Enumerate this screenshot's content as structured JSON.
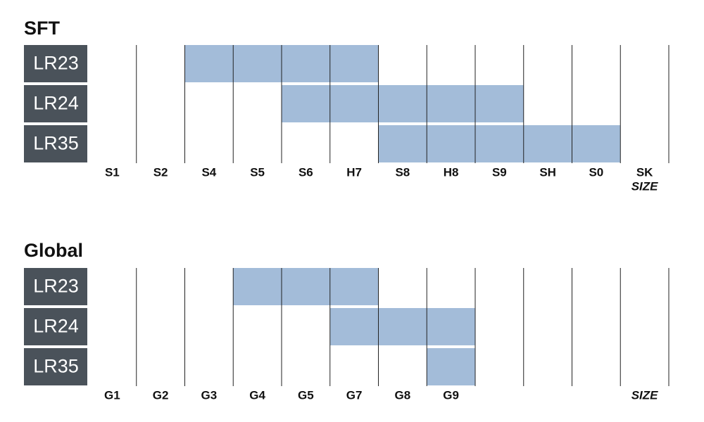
{
  "sections": [
    {
      "title": "SFT",
      "columns": [
        "S1",
        "S2",
        "S4",
        "S5",
        "S6",
        "H7",
        "S8",
        "H8",
        "S9",
        "SH",
        "S0",
        "SK"
      ],
      "axis_label": "SIZE",
      "rows": [
        {
          "label": "LR23",
          "first": 2,
          "last": 5
        },
        {
          "label": "LR24",
          "first": 4,
          "last": 8
        },
        {
          "label": "LR35",
          "first": 6,
          "last": 10
        }
      ]
    },
    {
      "title": "Global",
      "columns": [
        "G1",
        "G2",
        "G3",
        "G4",
        "G5",
        "G7",
        "G8",
        "G9",
        null,
        null,
        null,
        null
      ],
      "axis_label": "SIZE",
      "rows": [
        {
          "label": "LR23",
          "first": 3,
          "last": 5
        },
        {
          "label": "LR24",
          "first": 5,
          "last": 7
        },
        {
          "label": "LR35",
          "first": 7,
          "last": 7
        }
      ]
    }
  ]
}
